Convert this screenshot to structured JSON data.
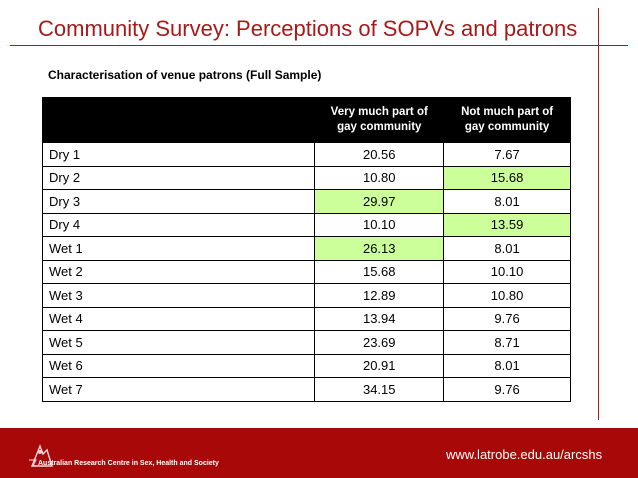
{
  "slide": {
    "title": "Community Survey: Perceptions of SOPVs and patrons",
    "subtitle": "Characterisation of venue patrons (Full Sample)"
  },
  "table": {
    "headers": [
      "",
      "Very much part of gay community",
      "Not much part of gay community"
    ],
    "header_lines": {
      "col2": [
        "Very much part of",
        "gay community"
      ],
      "col3": [
        "Not much part of",
        "gay community"
      ]
    },
    "rows": [
      {
        "label": "Dry 1",
        "very": "20.56",
        "not": "7.67"
      },
      {
        "label": "Dry 2",
        "very": "10.80",
        "not": "15.68"
      },
      {
        "label": "Dry 3",
        "very": "29.97",
        "not": "8.01"
      },
      {
        "label": "Dry 4",
        "very": "10.10",
        "not": "13.59"
      },
      {
        "label": "Wet 1",
        "very": "26.13",
        "not": "8.01"
      },
      {
        "label": "Wet 2",
        "very": "15.68",
        "not": "10.10"
      },
      {
        "label": "Wet 3",
        "very": "12.89",
        "not": "10.80"
      },
      {
        "label": "Wet 4",
        "very": "13.94",
        "not": "9.76"
      },
      {
        "label": "Wet 5",
        "very": "23.69",
        "not": "8.71"
      },
      {
        "label": "Wet 6",
        "very": "20.91",
        "not": "8.01"
      },
      {
        "label": "Wet 7",
        "very": "34.15",
        "not": "9.76"
      }
    ],
    "highlight_color": "#ccff99"
  },
  "footer": {
    "org_name": "Australian Research Centre in Sex, Health and Society",
    "url": "www.latrobe.edu.au/arcshs",
    "background": "#a80808"
  }
}
